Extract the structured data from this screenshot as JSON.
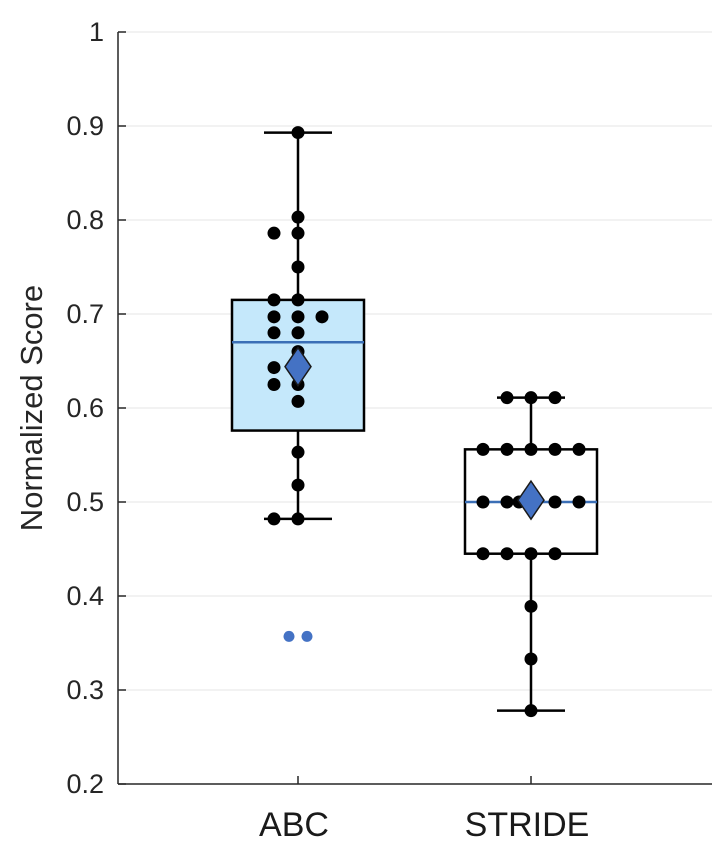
{
  "chart_data": {
    "type": "box",
    "ylabel": "Normalized Score",
    "ylim": [
      0.2,
      1.0
    ],
    "yticks": [
      "0.2",
      "0.3",
      "0.4",
      "0.5",
      "0.6",
      "0.7",
      "0.8",
      "0.9",
      "1"
    ],
    "grid": "horizontal",
    "categories": [
      "ABC",
      "STRIDE"
    ],
    "groups": [
      {
        "name": "ABC",
        "box_color": "#c5e8fb",
        "whisker_low": 0.482,
        "q1": 0.576,
        "median": 0.67,
        "q3": 0.715,
        "whisker_high": 0.893,
        "mean": 0.644,
        "outliers": [
          0.357,
          0.357
        ],
        "points": [
          0.893,
          0.803,
          0.786,
          0.786,
          0.75,
          0.715,
          0.715,
          0.697,
          0.697,
          0.697,
          0.68,
          0.68,
          0.66,
          0.643,
          0.643,
          0.625,
          0.625,
          0.607,
          0.553,
          0.518,
          0.482,
          0.482
        ]
      },
      {
        "name": "STRIDE",
        "box_color": "#ffffff",
        "whisker_low": 0.278,
        "q1": 0.445,
        "median": 0.5,
        "q3": 0.556,
        "whisker_high": 0.611,
        "mean": 0.502,
        "outliers": [],
        "points": [
          0.611,
          0.611,
          0.611,
          0.556,
          0.556,
          0.556,
          0.556,
          0.556,
          0.5,
          0.5,
          0.5,
          0.5,
          0.5,
          0.5,
          0.445,
          0.445,
          0.445,
          0.445,
          0.389,
          0.333,
          0.278
        ]
      }
    ],
    "colors": {
      "median_line": "#3b6fb6",
      "mean_marker": "#4472c4",
      "outlier": "#4472c4",
      "point": "#000000",
      "grid": "#e6e6e6",
      "axis": "#262626"
    }
  }
}
